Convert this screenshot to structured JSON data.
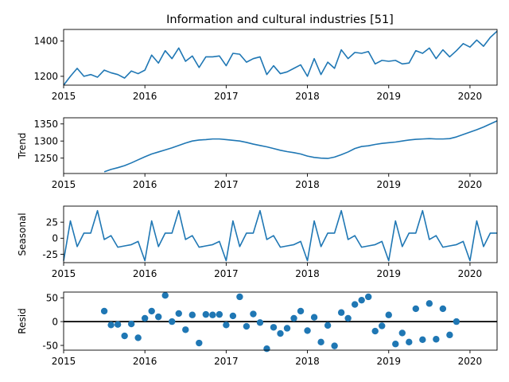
{
  "chart_data": {
    "type": "line",
    "title": "Information and cultural industries  [51]",
    "x_start": "2015-01",
    "x_end": "2020-05",
    "x_ticks": [
      "2015",
      "2016",
      "2017",
      "2018",
      "2019",
      "2020"
    ],
    "panels": [
      {
        "name": "observed",
        "ylabel": "",
        "kind": "line",
        "ylim": [
          1150,
          1465
        ],
        "yticks": [
          1200,
          1400
        ],
        "start": "2015-01",
        "values": [
          1150,
          1200,
          1245,
          1200,
          1210,
          1195,
          1235,
          1220,
          1210,
          1190,
          1230,
          1215,
          1235,
          1320,
          1275,
          1345,
          1300,
          1360,
          1285,
          1315,
          1250,
          1310,
          1310,
          1315,
          1260,
          1330,
          1325,
          1280,
          1300,
          1310,
          1210,
          1260,
          1215,
          1225,
          1245,
          1265,
          1200,
          1300,
          1210,
          1280,
          1245,
          1350,
          1300,
          1335,
          1330,
          1340,
          1270,
          1290,
          1285,
          1290,
          1270,
          1275,
          1345,
          1330,
          1360,
          1300,
          1350,
          1310,
          1345,
          1385,
          1365,
          1405,
          1370,
          1420,
          1455
        ]
      },
      {
        "name": "trend",
        "ylabel": "Trend",
        "kind": "line",
        "ylim": [
          1205,
          1368
        ],
        "yticks": [
          1250,
          1300,
          1350
        ],
        "start": "2015-07",
        "values": [
          1210,
          1217,
          1222,
          1228,
          1236,
          1245,
          1254,
          1262,
          1268,
          1274,
          1280,
          1287,
          1294,
          1300,
          1303,
          1304,
          1306,
          1306,
          1304,
          1302,
          1300,
          1296,
          1291,
          1287,
          1283,
          1278,
          1273,
          1269,
          1266,
          1262,
          1256,
          1252,
          1250,
          1249,
          1253,
          1260,
          1268,
          1278,
          1284,
          1286,
          1290,
          1293,
          1295,
          1297,
          1300,
          1303,
          1305,
          1306,
          1307,
          1306,
          1306,
          1307,
          1312,
          1319,
          1326,
          1333,
          1341,
          1350,
          1359
        ]
      },
      {
        "name": "seasonal",
        "ylabel": "Seasonal",
        "kind": "line",
        "ylim": [
          -38,
          50
        ],
        "yticks": [
          -25,
          0,
          25
        ],
        "start": "2015-01",
        "values": [
          -35,
          27,
          -13,
          8,
          8,
          43,
          -2,
          4,
          -14,
          -12,
          -10,
          -5,
          -35,
          27,
          -13,
          8,
          8,
          43,
          -2,
          4,
          -14,
          -12,
          -10,
          -5,
          -35,
          27,
          -13,
          8,
          8,
          43,
          -2,
          4,
          -14,
          -12,
          -10,
          -5,
          -35,
          27,
          -13,
          8,
          8,
          43,
          -2,
          4,
          -14,
          -12,
          -10,
          -5,
          -35,
          27,
          -13,
          8,
          8,
          43,
          -2,
          4,
          -14,
          -12,
          -10,
          -5,
          -35,
          27,
          -13,
          8,
          8
        ]
      },
      {
        "name": "resid",
        "ylabel": "Resid",
        "kind": "scatter",
        "ylim": [
          -60,
          62
        ],
        "yticks": [
          -50,
          0,
          50
        ],
        "zero_line": true,
        "start": "2015-07",
        "values": [
          22,
          -7,
          -6,
          -30,
          -5,
          -34,
          7,
          22,
          10,
          55,
          0,
          17,
          -17,
          14,
          -45,
          15,
          14,
          15,
          -7,
          12,
          52,
          -10,
          16,
          -2,
          -57,
          -12,
          -25,
          -14,
          7,
          22,
          -19,
          9,
          -43,
          -8,
          -51,
          19,
          7,
          36,
          45,
          52,
          -20,
          -9,
          14,
          -47,
          -24,
          -43,
          27,
          -38,
          38,
          -37,
          27,
          -28,
          0
        ]
      }
    ]
  }
}
